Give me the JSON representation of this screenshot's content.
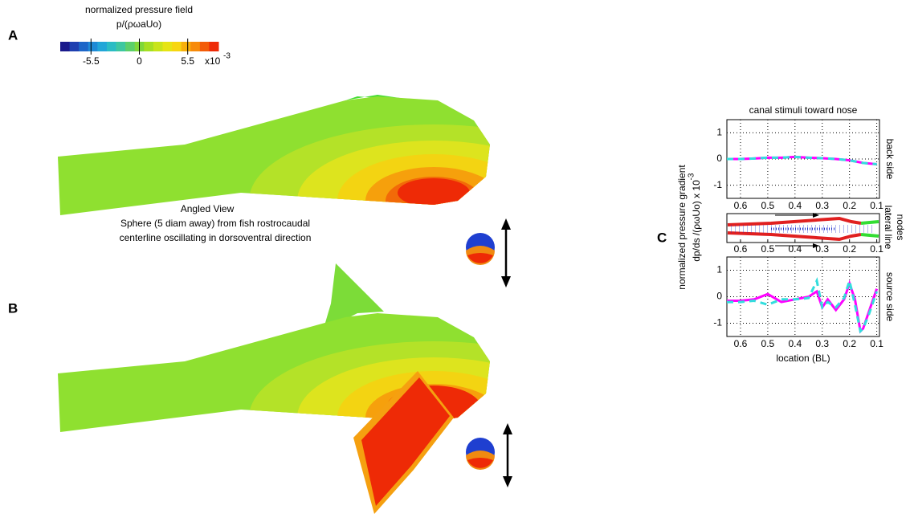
{
  "panel_labels": [
    "A",
    "B",
    "C"
  ],
  "colorbar": {
    "title": "normalized pressure field",
    "subtitle": "p/(ρωaUo)",
    "lim": [
      -9,
      9
    ],
    "ticks": [
      -5.5,
      0,
      5.5
    ],
    "multiplier": "x10",
    "exponent": "-3",
    "colors": [
      "#1a1a8c",
      "#1e3fb0",
      "#1d66c8",
      "#1f8ad6",
      "#22a6d8",
      "#2bbcc4",
      "#3ec7a0",
      "#5ccf6a",
      "#7fd73a",
      "#a6df22",
      "#c8e41a",
      "#e6e414",
      "#f7d610",
      "#f8b00c",
      "#f78a0a",
      "#f35c08",
      "#ee2a06"
    ]
  },
  "annotation": [
    "Angled View",
    "Sphere (5 diam away) from fish rostrocaudal",
    "centerline oscillating in dorsoventral direction"
  ],
  "y_axis_label": [
    "normalized pressure gradient",
    "dp/ds /(ρωUo) x 10",
    "-3"
  ],
  "nodes_panel_label": [
    "lateral line",
    "nodes"
  ],
  "chart_data": [
    {
      "type": "line",
      "title": "canal stimuli toward nose",
      "side_label": "back side",
      "x": [
        0.65,
        0.6,
        0.55,
        0.5,
        0.45,
        0.4,
        0.35,
        0.3,
        0.25,
        0.2,
        0.15,
        0.1
      ],
      "series": [
        {
          "color": "#ff00ff",
          "dash": false,
          "values": [
            0,
            0,
            0.02,
            0.05,
            0.05,
            0.08,
            0.05,
            0.03,
            0,
            -0.05,
            -0.15,
            -0.2
          ]
        },
        {
          "color": "#33dddd",
          "dash": true,
          "values": [
            0,
            0,
            0.02,
            0.05,
            0.05,
            0.08,
            0.05,
            0.03,
            0,
            -0.05,
            -0.15,
            -0.2
          ]
        }
      ],
      "xlim": [
        0.65,
        0.09
      ],
      "ylim": [
        -1.5,
        1.5
      ],
      "xticks": [
        0.6,
        0.5,
        0.4,
        0.3,
        0.2,
        0.1
      ],
      "yticks": [
        -1,
        0,
        1
      ],
      "grid": true
    },
    {
      "type": "line",
      "side_label": "source side",
      "xlabel": "location (BL)",
      "x": [
        0.65,
        0.6,
        0.55,
        0.5,
        0.45,
        0.4,
        0.35,
        0.32,
        0.3,
        0.28,
        0.25,
        0.22,
        0.2,
        0.18,
        0.16,
        0.15,
        0.13,
        0.1
      ],
      "series": [
        {
          "color": "#ff00ff",
          "dash": false,
          "values": [
            -0.15,
            -0.15,
            -0.1,
            0.1,
            -0.2,
            -0.1,
            0,
            0.2,
            -0.4,
            -0.1,
            -0.5,
            -0.1,
            0.5,
            -0.1,
            -1.3,
            -1.2,
            -0.6,
            0.3
          ]
        },
        {
          "color": "#33dddd",
          "dash": true,
          "values": [
            -0.2,
            -0.2,
            -0.15,
            -0.3,
            -0.1,
            -0.1,
            -0.05,
            0.6,
            -0.4,
            -0.2,
            -0.4,
            -0.05,
            0.6,
            -0.3,
            -1.3,
            -1.2,
            -0.7,
            0.2
          ]
        }
      ],
      "xlim": [
        0.65,
        0.09
      ],
      "ylim": [
        -1.5,
        1.5
      ],
      "xticks": [
        0.6,
        0.5,
        0.4,
        0.3,
        0.2,
        0.1
      ],
      "yticks": [
        -1,
        0,
        1
      ],
      "grid": true
    }
  ]
}
